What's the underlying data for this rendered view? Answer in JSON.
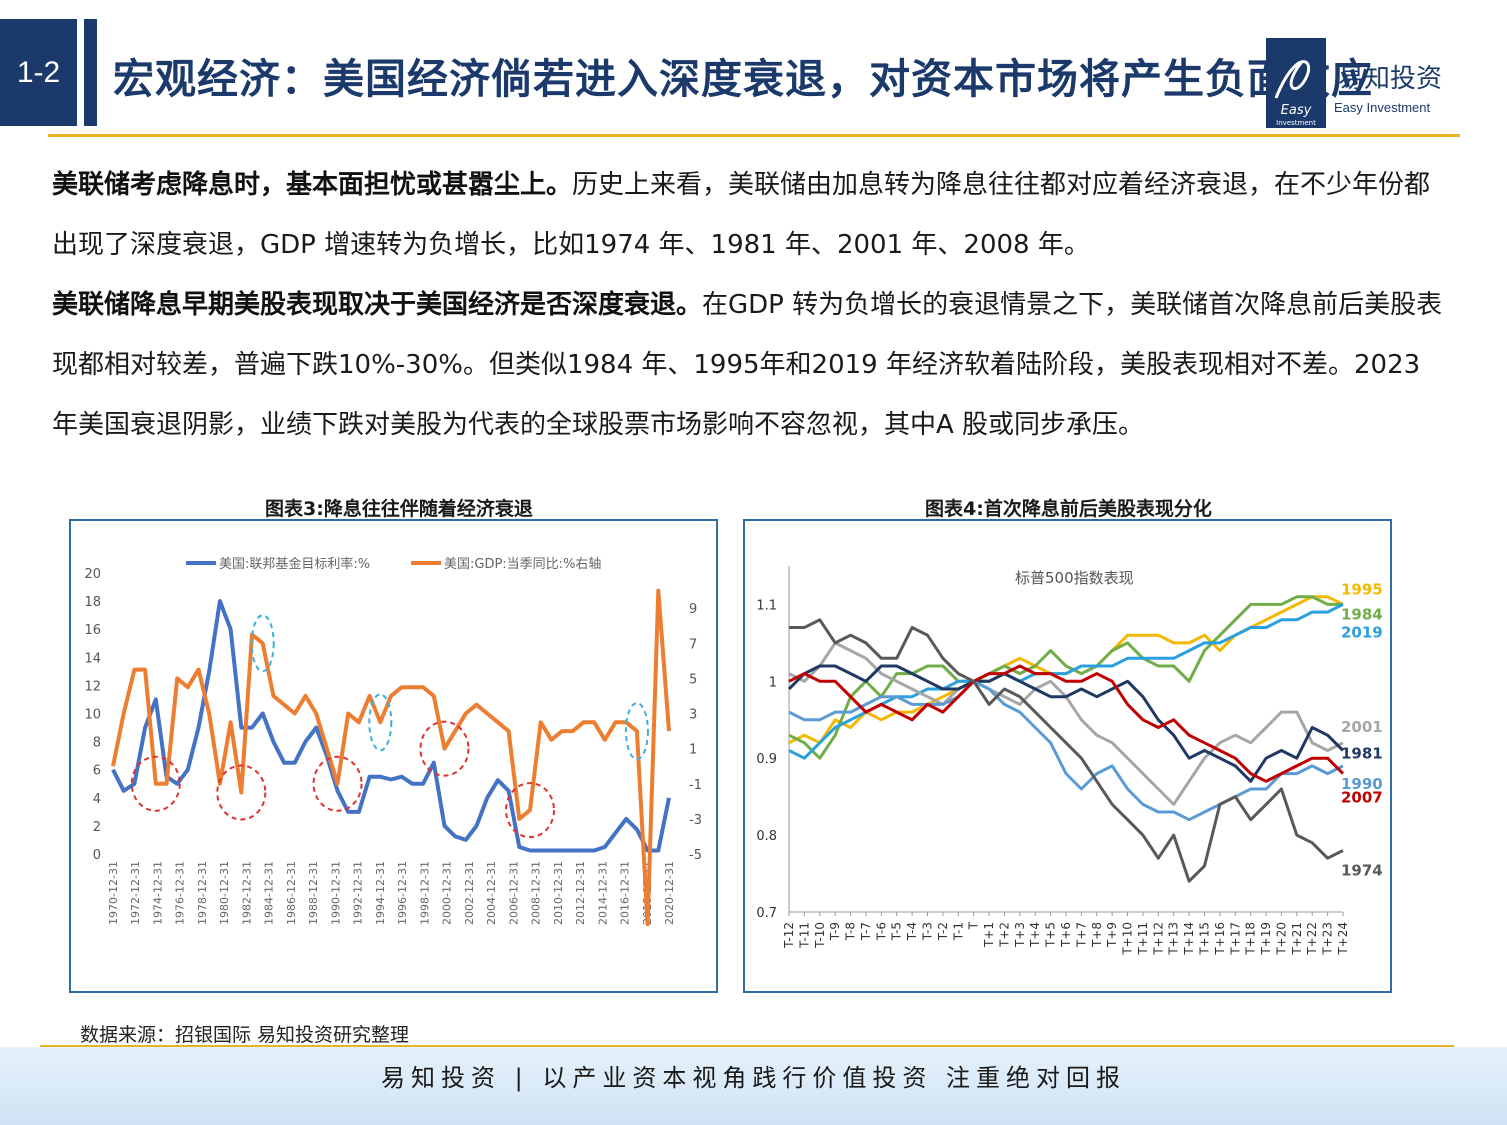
{
  "header": {
    "section": "1-2",
    "title": "宏观经济：美国经济倘若进入深度衰退，对资本市场将产生负面效应",
    "logo_cn": "易知投资",
    "logo_en": "Easy Investment",
    "logo_mark": "Easy Investment"
  },
  "body": {
    "p1_bold": "美联储考虑降息时，基本面担忧或甚嚣尘上。",
    "p1_text": "历史上来看，美联储由加息转为降息往往都对应着经济衰退，在不少年份都出现了深度衰退，GDP 增速转为负增长，比如1974 年、1981 年、2001 年、2008 年。",
    "p2_bold": "美联储降息早期美股表现取决于美国经济是否深度衰退。",
    "p2_text": "在GDP 转为负增长的衰退情景之下，美联储首次降息前后美股表现都相对较差，普遍下跌10%-30%。但类似1984 年、1995年和2019 年经济软着陆阶段，美股表现相对不差。2023 年美国衰退阴影，业绩下跌对美股为代表的全球股票市场影响不容忽视，其中A 股或同步承压。"
  },
  "chart3_title": "图表3:降息往往伴随着经济衰退",
  "chart4_title": "图表4:首次降息前后美股表现分化",
  "source": "数据来源：招银国际 易知投资研究整理",
  "footer": "易知投资 | 以产业资本视角践行价值投资  注重绝对回报",
  "colors": {
    "navy": "#1b3a6b",
    "gold": "#e6b422",
    "fed": "#4472c4",
    "gdp": "#ed7d31",
    "circle_red": "#e03030",
    "circle_blue": "#3bb0e0"
  },
  "chart_data": [
    {
      "type": "line",
      "title": "",
      "legend_position": "top",
      "x": [
        "1970",
        "1971",
        "1972",
        "1973",
        "1974",
        "1975",
        "1976",
        "1977",
        "1978",
        "1979",
        "1980",
        "1981",
        "1982",
        "1983",
        "1984",
        "1985",
        "1986",
        "1987",
        "1988",
        "1989",
        "1990",
        "1991",
        "1992",
        "1993",
        "1994",
        "1995",
        "1996",
        "1997",
        "1998",
        "1999",
        "2000",
        "2001",
        "2002",
        "2003",
        "2004",
        "2005",
        "2006",
        "2007",
        "2008",
        "2009",
        "2010",
        "2011",
        "2012",
        "2013",
        "2014",
        "2015",
        "2016",
        "2017",
        "2018",
        "2019",
        "2020",
        "2021",
        "2022"
      ],
      "x_tick_labels": [
        "1970-12-31",
        "1972-12-31",
        "1974-12-31",
        "1976-12-31",
        "1978-12-31",
        "1980-12-31",
        "1982-12-31",
        "1984-12-31",
        "1986-12-31",
        "1988-12-31",
        "1990-12-31",
        "1992-12-31",
        "1994-12-31",
        "1996-12-31",
        "1998-12-31",
        "2000-12-31",
        "2002-12-31",
        "2004-12-31",
        "2006-12-31",
        "2008-12-31",
        "2010-12-31",
        "2012-12-31",
        "2014-12-31",
        "2016-12-31",
        "2018-12-31",
        "2020-12-31"
      ],
      "series": [
        {
          "name": "美国:联邦基金目标利率:%",
          "axis": "left",
          "color": "#4472c4",
          "values": [
            6,
            4.5,
            5,
            9,
            11,
            5.5,
            5,
            6,
            9,
            13,
            18,
            16,
            9,
            9,
            10,
            8,
            6.5,
            6.5,
            8,
            9,
            7,
            4.5,
            3,
            3,
            5.5,
            5.5,
            5.3,
            5.5,
            5,
            5,
            6.5,
            2,
            1.25,
            1,
            2,
            4,
            5.25,
            4.5,
            0.5,
            0.25,
            0.25,
            0.25,
            0.25,
            0.25,
            0.25,
            0.25,
            0.5,
            1.5,
            2.5,
            1.75,
            0.25,
            0.25,
            4
          ]
        },
        {
          "name": "美国:GDP:当季同比:%右轴",
          "axis": "right",
          "color": "#ed7d31",
          "values": [
            0,
            3,
            5.5,
            5.5,
            -1,
            -1,
            5,
            4.5,
            5.5,
            3,
            -1,
            2.5,
            -1.5,
            7.5,
            7,
            4,
            3.5,
            3,
            4,
            3,
            1,
            -1,
            3,
            2.5,
            4,
            2.5,
            4,
            4.5,
            4.5,
            4.5,
            4,
            1,
            2,
            3,
            3.5,
            3,
            2.5,
            2,
            -3,
            -2.5,
            2.5,
            1.5,
            2,
            2,
            2.5,
            2.5,
            1.5,
            2.5,
            2.5,
            2,
            -9,
            10,
            2
          ]
        }
      ],
      "ylim_left": [
        0,
        20
      ],
      "ylim_right": [
        -5,
        11
      ],
      "y_ticks_left": [
        "0",
        "2",
        "4",
        "6",
        "8",
        "10",
        "12",
        "14",
        "16",
        "18",
        "20"
      ],
      "y_ticks_right": [
        "-5",
        "-3",
        "-1",
        "1",
        "3",
        "5",
        "7",
        "9"
      ],
      "annotations": {
        "red_circle_years": [
          "1974",
          "1982",
          "1991",
          "2001",
          "2009"
        ],
        "blue_circle_years": [
          "1984",
          "1995",
          "2019"
        ]
      }
    },
    {
      "type": "line",
      "title": "标普500指数表现",
      "x": [
        "T-12",
        "T-11",
        "T-10",
        "T-9",
        "T-8",
        "T-7",
        "T-6",
        "T-5",
        "T-4",
        "T-3",
        "T-2",
        "T-1",
        "T",
        "T+1",
        "T+2",
        "T+3",
        "T+4",
        "T+5",
        "T+6",
        "T+7",
        "T+8",
        "T+9",
        "T+10",
        "T+11",
        "T+12",
        "T+13",
        "T+14",
        "T+15",
        "T+16",
        "T+17",
        "T+18",
        "T+19",
        "T+20",
        "T+21",
        "T+22",
        "T+23",
        "T+24"
      ],
      "ylim": [
        0.7,
        1.15
      ],
      "y_ticks": [
        "0.7",
        "0.8",
        "0.9",
        "1",
        "1.1"
      ],
      "series": [
        {
          "name": "1995",
          "color": "#f5b800",
          "values": [
            0.92,
            0.93,
            0.92,
            0.95,
            0.94,
            0.96,
            0.95,
            0.96,
            0.96,
            0.97,
            0.98,
            0.99,
            1.0,
            1.01,
            1.02,
            1.03,
            1.02,
            1.01,
            1.01,
            1.02,
            1.02,
            1.04,
            1.06,
            1.06,
            1.06,
            1.05,
            1.05,
            1.06,
            1.04,
            1.06,
            1.07,
            1.08,
            1.09,
            1.1,
            1.11,
            1.11,
            1.1
          ]
        },
        {
          "name": "1984",
          "color": "#70ad47",
          "values": [
            0.93,
            0.92,
            0.9,
            0.93,
            0.98,
            1.0,
            0.98,
            1.01,
            1.01,
            1.02,
            1.02,
            1.0,
            1.0,
            1.01,
            1.02,
            1.01,
            1.02,
            1.04,
            1.02,
            1.01,
            1.02,
            1.04,
            1.05,
            1.03,
            1.02,
            1.02,
            1.0,
            1.04,
            1.06,
            1.08,
            1.1,
            1.1,
            1.1,
            1.11,
            1.11,
            1.1,
            1.1
          ]
        },
        {
          "name": "2019",
          "color": "#2aa0e0",
          "values": [
            0.91,
            0.9,
            0.92,
            0.94,
            0.95,
            0.96,
            0.97,
            0.98,
            0.98,
            0.99,
            0.99,
            1.0,
            1.0,
            1.0,
            1.01,
            1.0,
            1.01,
            1.01,
            1.01,
            1.02,
            1.02,
            1.02,
            1.03,
            1.03,
            1.03,
            1.03,
            1.04,
            1.05,
            1.05,
            1.06,
            1.07,
            1.07,
            1.08,
            1.08,
            1.09,
            1.09,
            1.1
          ]
        },
        {
          "name": "2001",
          "color": "#a6a6a6",
          "values": [
            1.01,
            1.0,
            1.02,
            1.05,
            1.04,
            1.03,
            1.01,
            1.0,
            0.99,
            0.98,
            0.97,
            0.99,
            1.0,
            0.99,
            0.98,
            0.97,
            0.99,
            1.0,
            0.98,
            0.95,
            0.93,
            0.92,
            0.9,
            0.88,
            0.86,
            0.84,
            0.87,
            0.9,
            0.92,
            0.93,
            0.92,
            0.94,
            0.96,
            0.96,
            0.92,
            0.91,
            0.92
          ]
        },
        {
          "name": "1981",
          "color": "#1f3864",
          "values": [
            0.99,
            1.01,
            1.02,
            1.02,
            1.01,
            1.0,
            1.02,
            1.02,
            1.01,
            1.0,
            0.99,
            0.99,
            1.0,
            1.0,
            1.01,
            1.0,
            0.99,
            0.98,
            0.98,
            0.99,
            0.98,
            0.99,
            1.0,
            0.98,
            0.95,
            0.93,
            0.9,
            0.91,
            0.9,
            0.89,
            0.87,
            0.9,
            0.91,
            0.9,
            0.94,
            0.93,
            0.91
          ]
        },
        {
          "name": "1990",
          "color": "#5b9bd5",
          "values": [
            0.96,
            0.95,
            0.95,
            0.96,
            0.96,
            0.97,
            0.98,
            0.98,
            0.97,
            0.97,
            0.97,
            0.98,
            1.0,
            0.99,
            0.97,
            0.96,
            0.94,
            0.92,
            0.88,
            0.86,
            0.88,
            0.89,
            0.86,
            0.84,
            0.83,
            0.83,
            0.82,
            0.83,
            0.84,
            0.85,
            0.86,
            0.86,
            0.88,
            0.88,
            0.89,
            0.88,
            0.89
          ]
        },
        {
          "name": "2007",
          "color": "#c00000",
          "values": [
            1.0,
            1.01,
            1.0,
            1.0,
            0.98,
            0.96,
            0.97,
            0.96,
            0.95,
            0.97,
            0.96,
            0.98,
            1.0,
            1.01,
            1.01,
            1.02,
            1.01,
            1.01,
            1.0,
            1.0,
            1.01,
            1.0,
            0.97,
            0.95,
            0.94,
            0.95,
            0.93,
            0.92,
            0.91,
            0.9,
            0.88,
            0.87,
            0.88,
            0.89,
            0.9,
            0.9,
            0.88
          ]
        },
        {
          "name": "1974",
          "color": "#595959",
          "values": [
            1.07,
            1.07,
            1.08,
            1.05,
            1.06,
            1.05,
            1.03,
            1.03,
            1.07,
            1.06,
            1.03,
            1.01,
            1.0,
            0.97,
            0.99,
            0.98,
            0.96,
            0.94,
            0.92,
            0.9,
            0.87,
            0.84,
            0.82,
            0.8,
            0.77,
            0.8,
            0.74,
            0.76,
            0.84,
            0.85,
            0.82,
            0.84,
            0.86,
            0.8,
            0.79,
            0.77,
            0.78
          ]
        }
      ]
    }
  ]
}
